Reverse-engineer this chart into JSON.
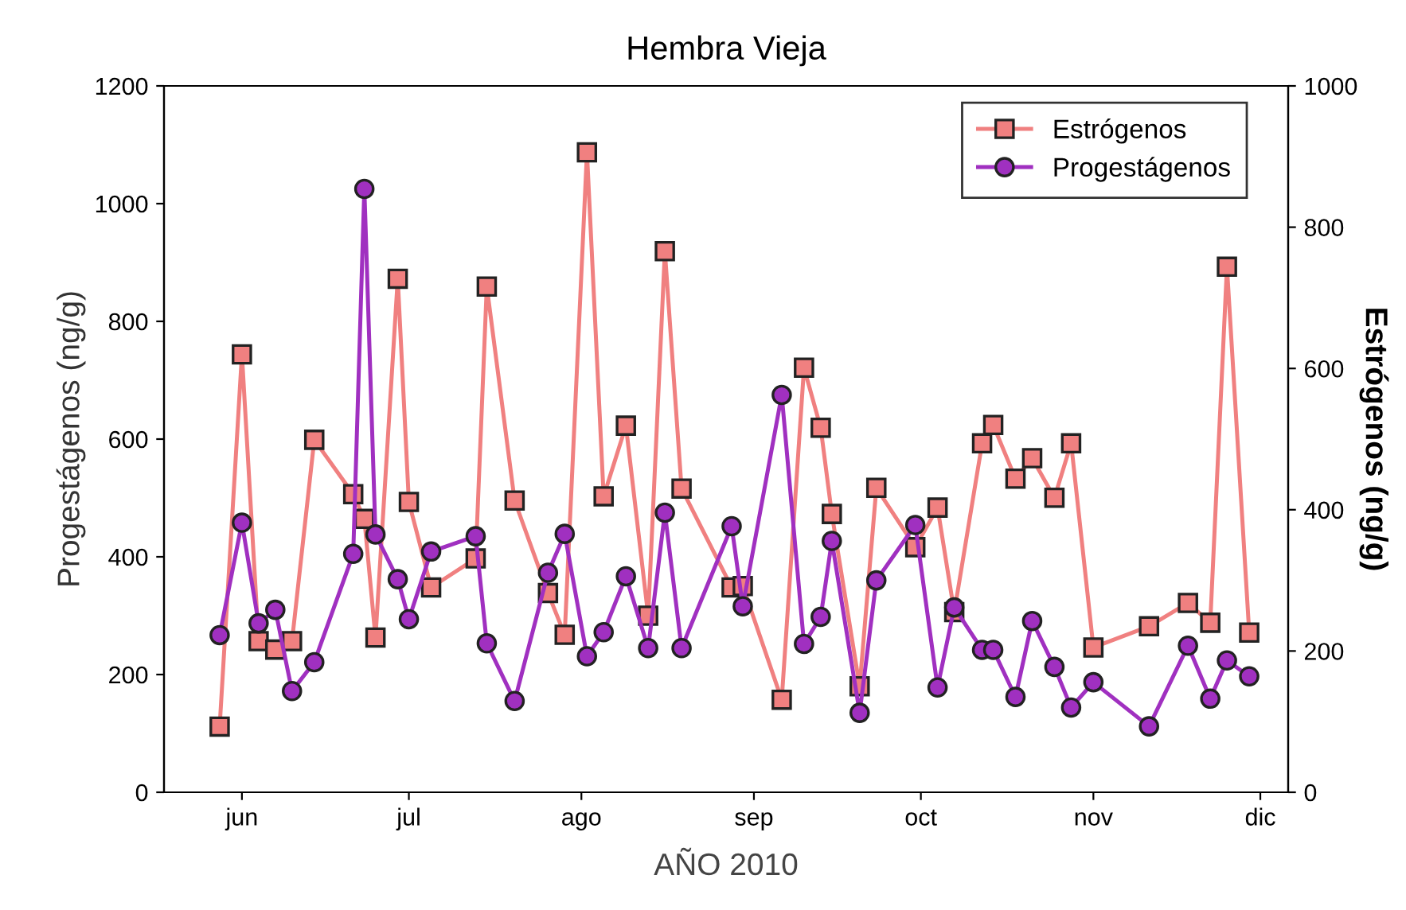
{
  "chart_data": {
    "type": "line",
    "title": "Hembra Vieja",
    "xlabel": "AÑO 2010",
    "ylabel": "Progestágenos (ng/g)",
    "y2label": "Estrógenos (ng/g)",
    "x": [
      "2010-05-28",
      "2010-06-01",
      "2010-06-04",
      "2010-06-07",
      "2010-06-10",
      "2010-06-14",
      "2010-06-21",
      "2010-06-23",
      "2010-06-25",
      "2010-06-29",
      "2010-07-01",
      "2010-07-05",
      "2010-07-13",
      "2010-07-15",
      "2010-07-20",
      "2010-07-26",
      "2010-07-29",
      "2010-08-02",
      "2010-08-05",
      "2010-08-09",
      "2010-08-13",
      "2010-08-16",
      "2010-08-19",
      "2010-08-28",
      "2010-08-30",
      "2010-09-06",
      "2010-09-10",
      "2010-09-13",
      "2010-09-15",
      "2010-09-20",
      "2010-09-23",
      "2010-09-30",
      "2010-10-04",
      "2010-10-07",
      "2010-10-12",
      "2010-10-14",
      "2010-10-18",
      "2010-10-21",
      "2010-10-25",
      "2010-10-28",
      "2010-11-01",
      "2010-11-11",
      "2010-11-18",
      "2010-11-22",
      "2010-11-25",
      "2010-11-29"
    ],
    "series": [
      {
        "name": "Estrógenos",
        "color": "#f08080",
        "axis": "y2",
        "marker": "square",
        "values": [
          93,
          620,
          214,
          202,
          214,
          499,
          422,
          387,
          219,
          727,
          411,
          290,
          331,
          716,
          413,
          282,
          223,
          906,
          419,
          519,
          250,
          766,
          430,
          290,
          292,
          131,
          601,
          516,
          394,
          150,
          431,
          347,
          403,
          255,
          494,
          520,
          444,
          473,
          417,
          494,
          205,
          235,
          268,
          240,
          744,
          226
        ]
      },
      {
        "name": "Progestágenos",
        "color": "#a030c0",
        "marker": "circle",
        "values": [
          267,
          458,
          287,
          310,
          172,
          221,
          405,
          1025,
          438,
          362,
          294,
          409,
          435,
          253,
          155,
          373,
          439,
          231,
          272,
          367,
          245,
          475,
          245,
          452,
          316,
          675,
          252,
          298,
          427,
          135,
          360,
          454,
          178,
          314,
          242,
          242,
          162,
          291,
          213,
          144,
          187,
          112,
          249,
          159,
          224,
          197
        ]
      }
    ],
    "xlim": [
      "2010-05-18",
      "2010-12-06"
    ],
    "xticks": [
      {
        "value": "2010-06-01",
        "label": "jun"
      },
      {
        "value": "2010-07-01",
        "label": "jul"
      },
      {
        "value": "2010-08-01",
        "label": "ago"
      },
      {
        "value": "2010-09-01",
        "label": "sep"
      },
      {
        "value": "2010-10-01",
        "label": "oct"
      },
      {
        "value": "2010-11-01",
        "label": "nov"
      },
      {
        "value": "2010-12-01",
        "label": "dic"
      }
    ],
    "ylim": [
      0,
      1200
    ],
    "yticks": [
      0,
      200,
      400,
      600,
      800,
      1000,
      1200
    ],
    "y2lim": [
      0,
      1000
    ],
    "y2ticks": [
      0,
      200,
      400,
      600,
      800,
      1000
    ],
    "legend": "top right",
    "grid": false,
    "line_style": "solid"
  }
}
